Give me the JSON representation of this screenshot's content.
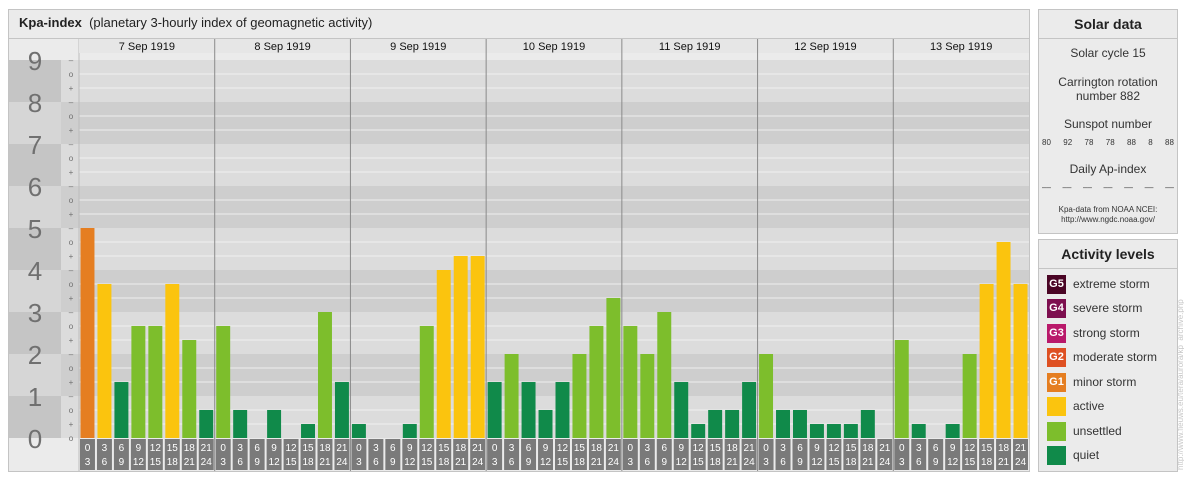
{
  "header": {
    "title": "Kpa-index",
    "subtitle": "(planetary 3-hourly index of geomagnetic activity)"
  },
  "chart_data": {
    "type": "bar",
    "ylim": [
      0,
      9
    ],
    "y_ticks": [
      "0",
      "1",
      "2",
      "3",
      "4",
      "5",
      "6",
      "7",
      "8",
      "9"
    ],
    "sub_ticks": [
      "+",
      "o",
      "–"
    ],
    "days": [
      "7 Sep 1919",
      "8 Sep 1919",
      "9 Sep 1919",
      "10 Sep 1919",
      "11 Sep 1919",
      "12 Sep 1919",
      "13 Sep 1919"
    ],
    "interval_start_labels": [
      "0",
      "3",
      "6",
      "9",
      "12",
      "15",
      "18",
      "21"
    ],
    "interval_end_labels": [
      "3",
      "6",
      "9",
      "12",
      "15",
      "18",
      "21",
      "24"
    ],
    "values": [
      [
        5.0,
        3.667,
        1.333,
        2.667,
        2.667,
        3.667,
        2.333,
        0.667
      ],
      [
        2.667,
        0.667,
        0.0,
        0.667,
        0.0,
        0.333,
        3.0,
        1.333
      ],
      [
        0.333,
        0.0,
        0.0,
        0.333,
        2.667,
        4.0,
        4.333,
        4.333
      ],
      [
        1.333,
        2.0,
        1.333,
        0.667,
        1.333,
        2.0,
        2.667,
        3.333
      ],
      [
        2.667,
        2.0,
        3.0,
        1.333,
        0.333,
        0.667,
        0.667,
        1.333
      ],
      [
        2.0,
        0.667,
        0.667,
        0.333,
        0.333,
        0.333,
        0.667,
        0.0
      ],
      [
        2.333,
        0.333,
        0.0,
        0.333,
        2.0,
        3.667,
        4.667,
        3.667
      ]
    ],
    "colors": {
      "quiet": "#108a4a",
      "unsettled": "#7dbe2c",
      "active": "#fbc40e",
      "g1": "#e57e21",
      "g2": "#de5022",
      "g3": "#b9196a",
      "g4": "#7d0f4f",
      "g5": "#4a0525"
    }
  },
  "solar": {
    "title": "Solar data",
    "cycle": "Solar cycle 15",
    "carrington_line1": "Carrington rotation",
    "carrington_line2": "number 882",
    "sunspot_label": "Sunspot number",
    "sunspots": [
      "80",
      "92",
      "78",
      "78",
      "88",
      "8",
      "88"
    ],
    "ap_label": "Daily Ap-index",
    "ap_values": [
      "––",
      "––",
      "––",
      "––",
      "––",
      "––",
      "––"
    ],
    "source_line1": "Kpa-data from NOAA NCEI:",
    "source_line2": "http://www.ngdc.noaa.gov/"
  },
  "activity": {
    "title": "Activity levels",
    "levels": [
      {
        "badge": "G5",
        "label": "extreme storm",
        "color": "#4a0525"
      },
      {
        "badge": "G4",
        "label": "severe storm",
        "color": "#7d0f4f"
      },
      {
        "badge": "G3",
        "label": "strong storm",
        "color": "#b9196a"
      },
      {
        "badge": "G2",
        "label": "moderate storm",
        "color": "#de5022"
      },
      {
        "badge": "G1",
        "label": "minor storm",
        "color": "#e57e21"
      },
      {
        "badge": "",
        "label": "active",
        "color": "#fbc40e"
      },
      {
        "badge": "",
        "label": "unsettled",
        "color": "#7dbe2c"
      },
      {
        "badge": "",
        "label": "quiet",
        "color": "#108a4a"
      }
    ]
  },
  "watermark": "http://www.fieuws.eu/tera/aurora/kp_archive.php"
}
